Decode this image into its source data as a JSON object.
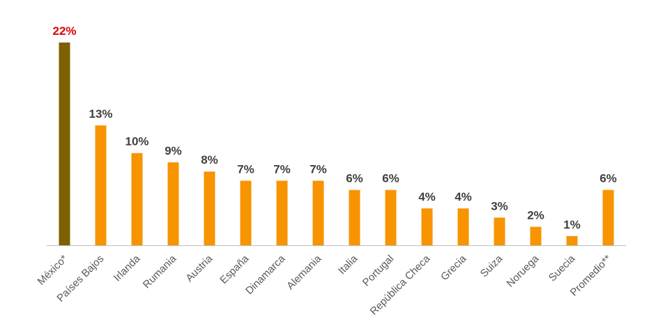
{
  "chart_data": {
    "type": "bar",
    "categories": [
      "México*",
      "Países Bajos",
      "Irlanda",
      "Rumania",
      "Austria",
      "España",
      "Dinamarca",
      "Alemania",
      "Italia",
      "Portugal",
      "República Checa",
      "Grecia",
      "Suiza",
      "Noruega",
      "Suecia",
      "Promedio**"
    ],
    "values": [
      22,
      13,
      10,
      9,
      8,
      7,
      7,
      7,
      6,
      6,
      4,
      4,
      3,
      2,
      1,
      6
    ],
    "value_labels": [
      "22%",
      "13%",
      "10%",
      "9%",
      "8%",
      "7%",
      "7%",
      "7%",
      "6%",
      "6%",
      "4%",
      "4%",
      "3%",
      "2%",
      "1%",
      "6%"
    ],
    "title": "",
    "xlabel": "",
    "ylabel": "",
    "ylim": [
      0,
      22
    ],
    "grid": false,
    "legend": "none",
    "colors": {
      "highlight_bar": "#7f6000",
      "bar": "#f79400",
      "highlight_label": "#e00000",
      "label": "#404040",
      "axis": "#bfbfbf"
    },
    "highlight_index": 0
  }
}
